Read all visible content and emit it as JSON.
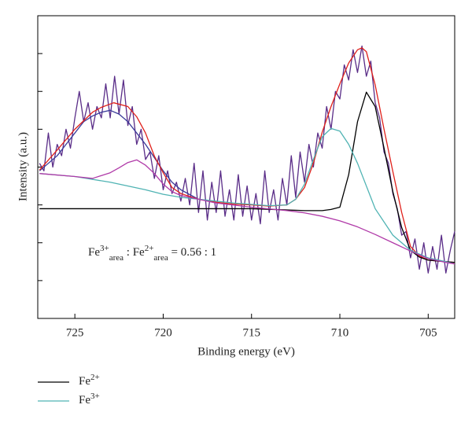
{
  "chart_data": {
    "type": "line",
    "xlabel": "Binding energy (eV)",
    "ylabel": "Intensity (a.u.)",
    "xlim": [
      727.1,
      703.5
    ],
    "xticks": [
      725,
      720,
      715,
      710,
      705
    ],
    "ylim": [
      0,
      8
    ],
    "yticks": [
      1,
      2,
      3,
      4,
      5,
      6,
      7
    ],
    "annotation": [
      {
        "text": "Fe"
      },
      {
        "text": "3+",
        "style": "sup"
      },
      {
        "text": "area",
        "style": "sub"
      },
      {
        "text": " : Fe"
      },
      {
        "text": "2+",
        "style": "sup"
      },
      {
        "text": "area",
        "style": "sub"
      },
      {
        "text": " = 0.56 : 1"
      }
    ],
    "series": [
      {
        "color": "#5a2d88",
        "x": [
          727.0,
          726.75,
          726.5,
          726.25,
          726.0,
          725.75,
          725.5,
          725.25,
          725.0,
          724.75,
          724.5,
          724.25,
          724.0,
          723.75,
          723.5,
          723.25,
          723.0,
          722.75,
          722.5,
          722.25,
          722.0,
          721.75,
          721.5,
          721.25,
          721.0,
          720.75,
          720.5,
          720.25,
          720.0,
          719.75,
          719.5,
          719.25,
          719.0,
          718.75,
          718.5,
          718.25,
          718.0,
          717.75,
          717.5,
          717.25,
          717.0,
          716.75,
          716.5,
          716.25,
          716.0,
          715.75,
          715.5,
          715.25,
          715.0,
          714.75,
          714.5,
          714.25,
          714.0,
          713.75,
          713.5,
          713.25,
          713.0,
          712.75,
          712.5,
          712.25,
          712.0,
          711.75,
          711.5,
          711.25,
          711.0,
          710.75,
          710.5,
          710.25,
          710.0,
          709.75,
          709.5,
          709.25,
          709.0,
          708.75,
          708.5,
          708.25,
          708.0,
          707.75,
          707.5,
          707.25,
          707.0,
          706.75,
          706.5,
          706.25,
          706.0,
          705.75,
          705.5,
          705.25,
          705.0,
          704.75,
          704.5,
          704.25,
          704.0,
          703.75,
          703.5
        ],
        "values": [
          4.1,
          3.9,
          4.9,
          4.0,
          4.6,
          4.3,
          5.0,
          4.5,
          5.3,
          6.0,
          5.2,
          5.7,
          5.0,
          5.6,
          5.3,
          6.2,
          5.3,
          6.4,
          5.4,
          6.3,
          5.1,
          5.6,
          4.6,
          5.0,
          4.2,
          4.4,
          3.7,
          4.3,
          3.4,
          3.9,
          3.3,
          3.6,
          3.1,
          3.7,
          3.0,
          4.1,
          2.8,
          3.9,
          2.6,
          3.6,
          2.8,
          3.9,
          2.7,
          3.4,
          2.6,
          3.8,
          2.7,
          3.5,
          2.6,
          3.3,
          2.5,
          3.9,
          2.8,
          3.4,
          2.6,
          3.7,
          3.0,
          4.3,
          3.2,
          4.4,
          3.6,
          4.6,
          4.0,
          4.9,
          4.5,
          5.6,
          5.0,
          6.0,
          5.8,
          6.7,
          6.3,
          7.1,
          6.5,
          7.2,
          6.4,
          6.8,
          5.7,
          5.3,
          4.4,
          4.1,
          3.3,
          2.9,
          2.2,
          2.3,
          1.6,
          2.1,
          1.3,
          2.0,
          1.2,
          1.9,
          1.3,
          2.2,
          1.2,
          1.8,
          2.3
        ]
      },
      {
        "color": "#3b3b9a",
        "x": [
          727.0,
          726.0,
          725.5,
          725.0,
          724.5,
          724.0,
          723.5,
          723.0,
          722.5,
          722.0,
          721.5,
          721.0,
          720.5,
          720.0,
          719.5,
          719.0,
          718.0
        ],
        "values": [
          3.9,
          4.3,
          4.6,
          4.9,
          5.2,
          5.35,
          5.45,
          5.5,
          5.4,
          5.2,
          4.9,
          4.6,
          4.25,
          3.9,
          3.6,
          3.4,
          3.15
        ]
      },
      {
        "color": "#e0201b",
        "x": [
          727.0,
          726.0,
          725.0,
          724.0,
          723.5,
          722.8,
          722.0,
          721.5,
          721.0,
          720.5,
          720.0,
          719.5,
          719.0,
          718.0,
          717.0,
          716.0,
          715.0,
          714.0,
          713.0,
          712.5,
          712.0,
          711.5,
          711.0,
          710.5,
          710.0,
          709.5,
          709.0,
          708.75,
          708.5,
          708.0,
          707.5,
          707.0,
          706.5,
          706.0,
          705.5,
          705.0,
          704.0,
          703.5
        ],
        "values": [
          3.92,
          4.45,
          5.0,
          5.45,
          5.58,
          5.7,
          5.6,
          5.33,
          4.9,
          4.29,
          3.85,
          3.46,
          3.3,
          3.15,
          3.07,
          3.02,
          3.0,
          2.97,
          3.0,
          3.15,
          3.46,
          4.1,
          4.92,
          5.6,
          6.2,
          6.75,
          7.1,
          7.15,
          7.05,
          6.17,
          5.0,
          3.88,
          2.8,
          1.9,
          1.65,
          1.54,
          1.5,
          1.48
        ]
      },
      {
        "name": [
          {
            "text": "Fe"
          },
          {
            "text": "2+",
            "style": "sup"
          }
        ],
        "color": "#000000",
        "x": [
          727.0,
          720.0,
          715.0,
          712.0,
          711.0,
          710.5,
          710.0,
          709.5,
          709.0,
          708.5,
          708.0,
          707.5,
          707.0,
          706.5,
          706.0,
          705.5,
          705.0,
          704.0,
          703.5
        ],
        "values": [
          2.9,
          2.9,
          2.9,
          2.85,
          2.85,
          2.88,
          2.94,
          3.8,
          5.2,
          5.98,
          5.6,
          4.5,
          3.35,
          2.4,
          1.8,
          1.62,
          1.54,
          1.5,
          1.48
        ]
      },
      {
        "name": [
          {
            "text": "Fe"
          },
          {
            "text": "3+",
            "style": "sup"
          }
        ],
        "color": "#4fb3b3",
        "x": [
          727.0,
          725.0,
          723.0,
          721.0,
          720.0,
          719.0,
          718.0,
          716.0,
          714.0,
          713.0,
          712.5,
          712.0,
          711.5,
          711.0,
          710.5,
          710.0,
          709.5,
          709.0,
          708.5,
          708.0,
          707.0,
          706.0,
          705.0,
          704.0,
          703.5
        ],
        "values": [
          3.83,
          3.75,
          3.6,
          3.4,
          3.28,
          3.2,
          3.15,
          3.05,
          2.98,
          3.0,
          3.15,
          3.55,
          4.2,
          4.8,
          5.02,
          4.95,
          4.6,
          4.1,
          3.5,
          2.9,
          2.2,
          1.8,
          1.6,
          1.5,
          1.44
        ]
      },
      {
        "color": "#b03aa8",
        "x": [
          727.0,
          725.0,
          724.0,
          723.0,
          722.5,
          722.0,
          721.5,
          721.0,
          720.5,
          720.0,
          719.5,
          719.0,
          718.0,
          717.0,
          715.0,
          713.0,
          712.0,
          711.0,
          710.0,
          709.0,
          708.0,
          707.0,
          706.0,
          705.0,
          704.0,
          703.5
        ],
        "values": [
          3.83,
          3.75,
          3.7,
          3.85,
          3.98,
          4.12,
          4.19,
          4.05,
          3.83,
          3.55,
          3.35,
          3.25,
          3.15,
          3.05,
          2.94,
          2.85,
          2.79,
          2.7,
          2.58,
          2.42,
          2.22,
          2.0,
          1.78,
          1.58,
          1.48,
          1.44
        ]
      }
    ]
  }
}
